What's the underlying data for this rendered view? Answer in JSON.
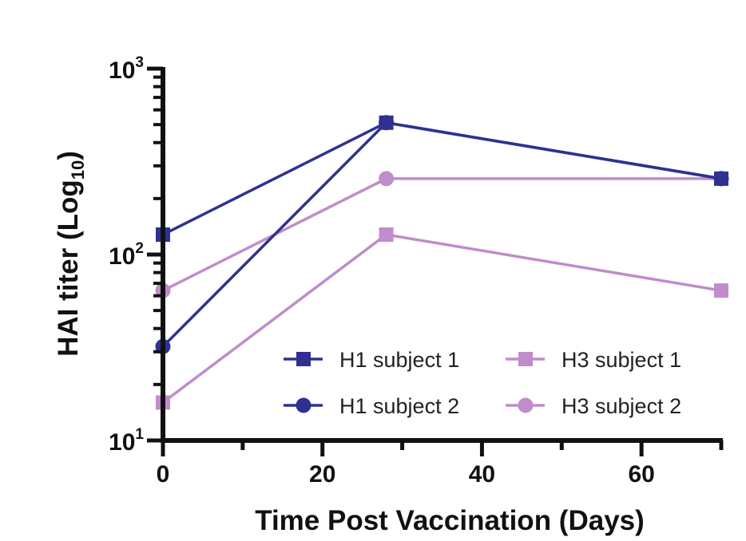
{
  "colors": {
    "h1": "#2e3192",
    "h3": "#c08ccb",
    "axis": "#111111"
  },
  "chart_data": {
    "type": "line",
    "xlabel": "Time Post Vaccination (Days)",
    "ylabel": "HAI titer (Log",
    "ylabel_sub": "10",
    "ylabel_close": ")",
    "xlim": [
      0,
      70
    ],
    "ylim": [
      10,
      1000
    ],
    "yscale": "log",
    "x_ticks": [
      0,
      20,
      40,
      60
    ],
    "x_tick_labels": [
      "0",
      "20",
      "40",
      "60"
    ],
    "y_ticks": [
      10,
      100,
      1000
    ],
    "y_tick_base": "10",
    "y_tick_exponents": [
      "1",
      "2",
      "3"
    ],
    "grid": false,
    "legend_position": "bottom-right",
    "series": [
      {
        "name": "H1 subject 1",
        "color_key": "h1",
        "marker": "square",
        "x": [
          0,
          28,
          70
        ],
        "y": [
          128,
          512,
          256
        ]
      },
      {
        "name": "H3 subject 1",
        "color_key": "h3",
        "marker": "square",
        "x": [
          0,
          28,
          70
        ],
        "y": [
          16,
          128,
          64
        ]
      },
      {
        "name": "H1 subject 2",
        "color_key": "h1",
        "marker": "circle",
        "x": [
          0,
          28,
          70
        ],
        "y": [
          32,
          512,
          256
        ]
      },
      {
        "name": "H3 subject 2",
        "color_key": "h3",
        "marker": "circle",
        "x": [
          0,
          28,
          70
        ],
        "y": [
          64,
          256,
          256
        ]
      }
    ]
  }
}
